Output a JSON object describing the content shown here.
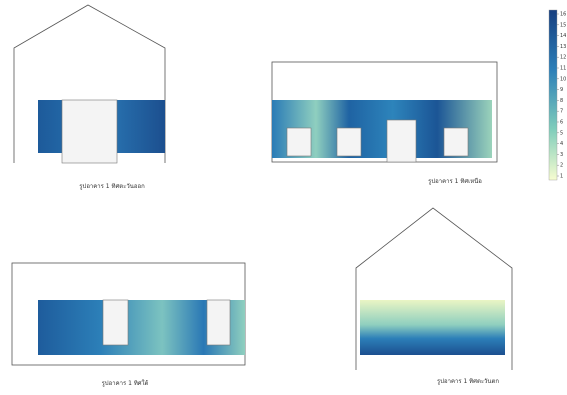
{
  "panels": [
    {
      "caption": "รูปอาคาร 1 ทิศตะวันออก"
    },
    {
      "caption": "รูปอาคาร 1 ทิศเหนือ"
    },
    {
      "caption": "รูปอาคาร 1 ทิศใต้"
    },
    {
      "caption": "รูปอาคาร 1 ทิศตะวันตก"
    }
  ],
  "colorbar": {
    "ticks": [
      16,
      15,
      14,
      13,
      12,
      11,
      10,
      9,
      8,
      7,
      6,
      5,
      4,
      3,
      2,
      1
    ]
  }
}
